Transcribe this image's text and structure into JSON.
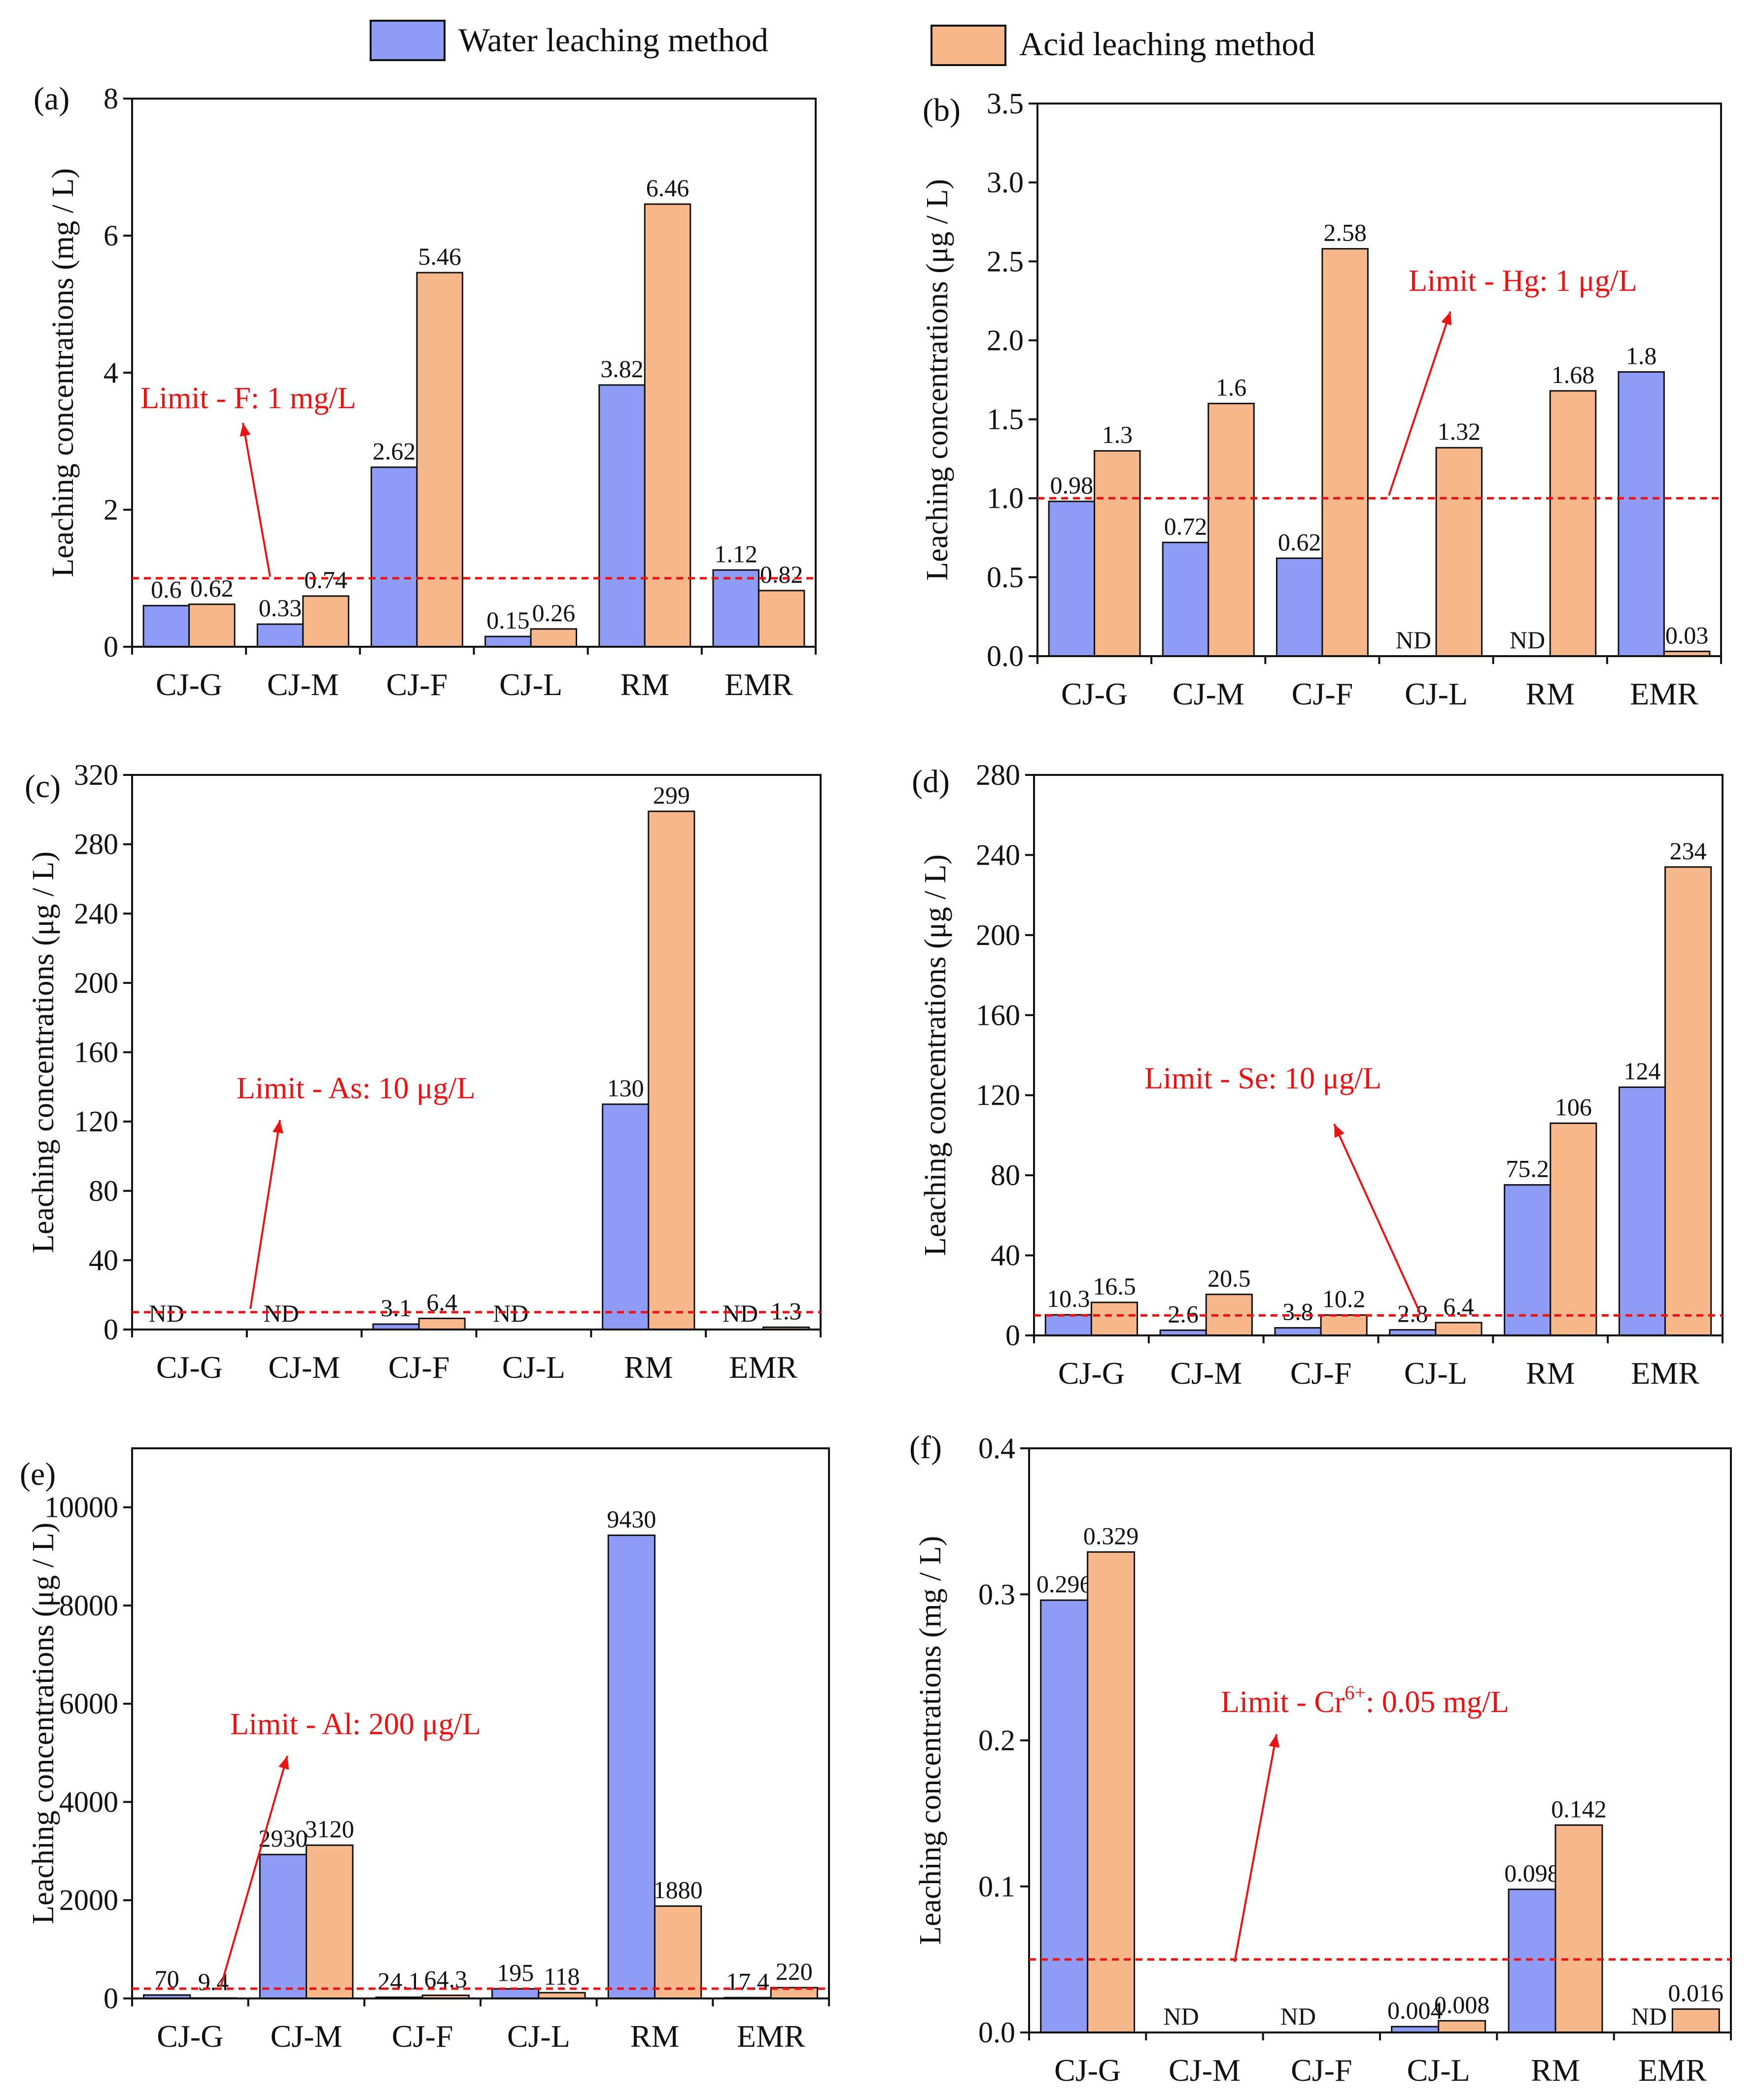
{
  "colors": {
    "water": "#8f9cf6",
    "acid": "#f7b98b",
    "limit": "#ee1111",
    "axis": "#111111"
  },
  "legend": {
    "water": "Water leaching method",
    "acid": "Acid leaching method"
  },
  "chart_data": [
    {
      "type": "bar",
      "panel": "(a)",
      "ylabel": "Leaching concentrations (mg / L)",
      "categories": [
        "CJ-G",
        "CJ-M",
        "CJ-F",
        "CJ-L",
        "RM",
        "EMR"
      ],
      "ylim": [
        0,
        8
      ],
      "yticks": [
        0,
        2,
        4,
        6,
        8
      ],
      "series": [
        {
          "name": "Water leaching method",
          "values": [
            0.6,
            0.33,
            2.62,
            0.15,
            3.82,
            1.12
          ],
          "labels": [
            "0.6",
            "0.33",
            "2.62",
            "0.15",
            "3.82",
            "1.12"
          ]
        },
        {
          "name": "Acid leaching method",
          "values": [
            0.62,
            0.74,
            5.46,
            0.26,
            6.46,
            0.82
          ],
          "labels": [
            "0.62",
            "0.74",
            "5.46",
            "0.26",
            "6.46",
            "0.82"
          ]
        }
      ],
      "limit": {
        "value": 1,
        "text": "Limit - F: 1 mg/L"
      }
    },
    {
      "type": "bar",
      "panel": "(b)",
      "ylabel": "Leaching concentrations (μg / L)",
      "categories": [
        "CJ-G",
        "CJ-M",
        "CJ-F",
        "CJ-L",
        "RM",
        "EMR"
      ],
      "ylim": [
        0,
        3.5
      ],
      "yticks": [
        "0.0",
        "0.5",
        "1.0",
        "1.5",
        "2.0",
        "2.5",
        "3.0",
        "3.5"
      ],
      "series": [
        {
          "name": "Water leaching method",
          "values": [
            0.98,
            0.72,
            0.62,
            0,
            0,
            1.8
          ],
          "labels": [
            "0.98",
            "0.72",
            "0.62",
            "ND",
            "ND",
            "1.8"
          ]
        },
        {
          "name": "Acid leaching method",
          "values": [
            1.3,
            1.6,
            2.58,
            1.32,
            1.68,
            0.03
          ],
          "labels": [
            "1.3",
            "1.6",
            "2.58",
            "1.32",
            "1.68",
            "0.03"
          ]
        }
      ],
      "limit": {
        "value": 1,
        "text": "Limit - Hg: 1 μg/L"
      }
    },
    {
      "type": "bar",
      "panel": "(c)",
      "ylabel": "Leaching concentrations (μg / L)",
      "categories": [
        "CJ-G",
        "CJ-M",
        "CJ-F",
        "CJ-L",
        "RM",
        "EMR"
      ],
      "ylim": [
        0,
        320
      ],
      "yticks": [
        0,
        40,
        80,
        120,
        160,
        200,
        240,
        280,
        320
      ],
      "series": [
        {
          "name": "Water leaching method",
          "values": [
            0,
            0,
            3.1,
            0,
            130,
            0
          ],
          "labels": [
            "ND",
            "ND",
            "3.1",
            "ND",
            "130",
            "ND"
          ]
        },
        {
          "name": "Acid leaching method",
          "values": [
            0,
            0,
            6.4,
            0,
            299,
            1.3
          ],
          "labels": [
            "",
            "",
            "6.4",
            "",
            "299",
            "1.3"
          ]
        }
      ],
      "limit": {
        "value": 10,
        "text": "Limit - As: 10 μg/L"
      }
    },
    {
      "type": "bar",
      "panel": "(d)",
      "ylabel": "Leaching concentrations (μg / L)",
      "categories": [
        "CJ-G",
        "CJ-M",
        "CJ-F",
        "CJ-L",
        "RM",
        "EMR"
      ],
      "ylim": [
        0,
        280
      ],
      "yticks": [
        0,
        40,
        80,
        120,
        160,
        200,
        240,
        280
      ],
      "series": [
        {
          "name": "Water leaching method",
          "values": [
            10.3,
            2.6,
            3.8,
            2.8,
            75.2,
            124
          ],
          "labels": [
            "10.3",
            "2.6",
            "3.8",
            "2.8",
            "75.2",
            "124"
          ]
        },
        {
          "name": "Acid leaching method",
          "values": [
            16.5,
            20.5,
            10.2,
            6.4,
            106,
            234
          ],
          "labels": [
            "16.5",
            "20.5",
            "10.2",
            "6.4",
            "106",
            "234"
          ]
        }
      ],
      "limit": {
        "value": 10,
        "text": "Limit - Se: 10 μg/L"
      }
    },
    {
      "type": "bar",
      "panel": "(e)",
      "ylabel": "Leaching concentrations (μg / L)",
      "categories": [
        "CJ-G",
        "CJ-M",
        "CJ-F",
        "CJ-L",
        "RM",
        "EMR"
      ],
      "ylim": [
        0,
        11200
      ],
      "yticks": [
        0,
        2000,
        4000,
        6000,
        8000,
        10000
      ],
      "series": [
        {
          "name": "Water leaching method",
          "values": [
            70,
            2930,
            24.1,
            195,
            9430,
            17.4
          ],
          "labels": [
            "70",
            "2930",
            "24.1",
            "195",
            "9430",
            "17.4"
          ]
        },
        {
          "name": "Acid leaching method",
          "values": [
            9.4,
            3120,
            64.3,
            118,
            1880,
            220
          ],
          "labels": [
            "9.4",
            "3120",
            "64.3",
            "118",
            "1880",
            "220"
          ]
        }
      ],
      "limit": {
        "value": 200,
        "text": "Limit - Al: 200 μg/L"
      }
    },
    {
      "type": "bar",
      "panel": "(f)",
      "ylabel": "Leaching concentrations (mg / L)",
      "categories": [
        "CJ-G",
        "CJ-M",
        "CJ-F",
        "CJ-L",
        "RM",
        "EMR"
      ],
      "ylim": [
        0,
        0.4
      ],
      "yticks": [
        "0.0",
        "0.1",
        "0.2",
        "0.3",
        "0.4"
      ],
      "series": [
        {
          "name": "Water leaching method",
          "values": [
            0.296,
            0,
            0,
            0.004,
            0.098,
            0
          ],
          "labels": [
            "0.296",
            "ND",
            "ND",
            "0.004",
            "0.098",
            "ND"
          ]
        },
        {
          "name": "Acid leaching method",
          "values": [
            0.329,
            0,
            0,
            0.008,
            0.142,
            0.016
          ],
          "labels": [
            "0.329",
            "",
            "",
            "0.008",
            "0.142",
            "0.016"
          ]
        }
      ],
      "limit": {
        "value": 0.05,
        "text": "Limit - Cr6+: 0.05 mg/L",
        "text_pre": "Limit - Cr",
        "text_sup": "6+",
        "text_post": ": 0.05 mg/L"
      }
    }
  ]
}
